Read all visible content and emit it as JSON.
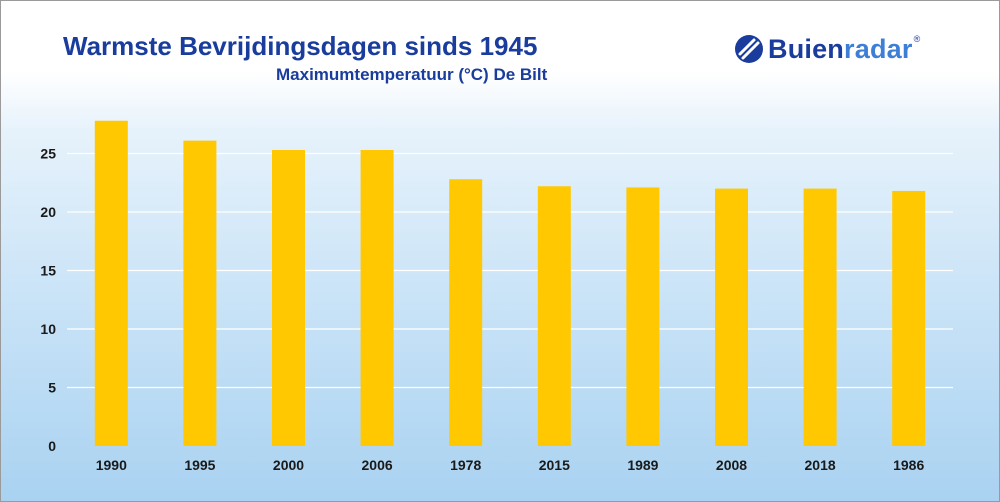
{
  "title": "Warmste Bevrijdingsdagen sinds 1945",
  "subtitle": "Maximumtemperatuur (°C) De Bilt",
  "logo": {
    "text_bold": "Buien",
    "text_light": "radar",
    "reg_mark": "®",
    "icon": "buienradar-logo-icon"
  },
  "colors": {
    "bar": "#ffc800",
    "title": "#1a3c9c",
    "grid": "#ffffff",
    "axis_text": "#1a1a1a"
  },
  "chart_data": {
    "type": "bar",
    "title": "Warmste Bevrijdingsdagen sinds 1945",
    "subtitle": "Maximumtemperatuur (°C) De Bilt",
    "categories": [
      "1990",
      "1995",
      "2000",
      "2006",
      "1978",
      "2015",
      "1989",
      "2008",
      "2018",
      "1986"
    ],
    "values": [
      27.8,
      26.1,
      25.3,
      25.3,
      22.8,
      22.2,
      22.1,
      22.0,
      22.0,
      21.8
    ],
    "yticks": [
      0,
      5,
      10,
      15,
      20,
      25
    ],
    "ylim": [
      0,
      30
    ],
    "grid": true,
    "legend": "none"
  }
}
